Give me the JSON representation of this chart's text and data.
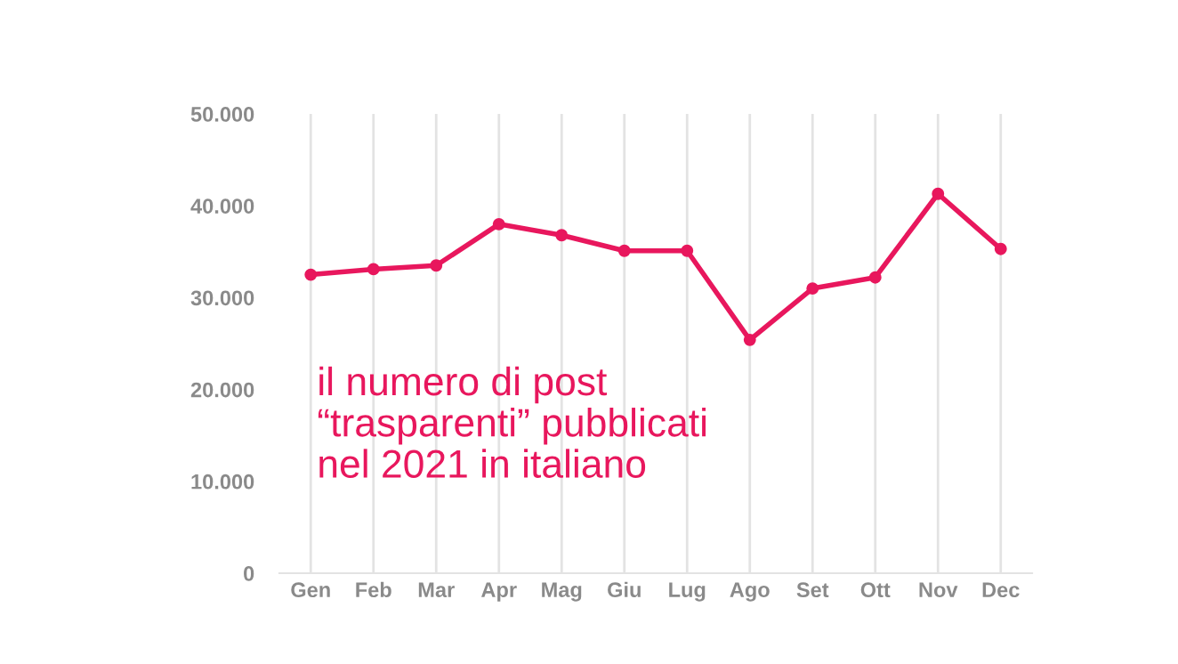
{
  "chart_data": {
    "type": "line",
    "categories": [
      "Gen",
      "Feb",
      "Mar",
      "Apr",
      "Mag",
      "Giu",
      "Lug",
      "Ago",
      "Set",
      "Ott",
      "Nov",
      "Dec"
    ],
    "series": [
      {
        "color": "#e8175d",
        "values": [
          32500,
          33100,
          33500,
          38000,
          36800,
          35100,
          35100,
          25400,
          31000,
          32200,
          41300,
          35300
        ]
      }
    ],
    "ylim": [
      0,
      50000
    ],
    "yticks": [
      {
        "value": 0,
        "label": "0"
      },
      {
        "value": 10000,
        "label": "10.000"
      },
      {
        "value": 20000,
        "label": "20.000"
      },
      {
        "value": 30000,
        "label": "30.000"
      },
      {
        "value": 40000,
        "label": "40.000"
      },
      {
        "value": 50000,
        "label": "50.000"
      }
    ],
    "grid": "x",
    "marker": "circle",
    "line_style": "solid",
    "annotations": [
      "il numero di post\n“trasparenti” pubblicati\nnel 2021 in italiano"
    ]
  }
}
